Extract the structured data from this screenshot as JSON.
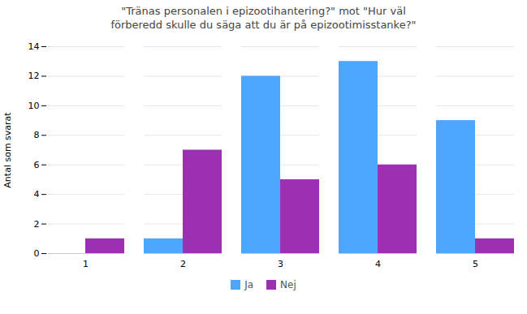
{
  "chart_data": {
    "type": "bar",
    "title": "\"Tränas personalen i epizootihantering?\" mot \"Hur väl\nförberedd skulle du säga att du är på epizootimisstanke?\"",
    "ylabel": "Antal som svarat",
    "categories": [
      1,
      2,
      3,
      4,
      5
    ],
    "series": [
      {
        "name": "Ja",
        "color": "#4da6ff",
        "values": [
          0,
          1,
          12,
          13,
          9
        ]
      },
      {
        "name": "Nej",
        "color": "#9b30b0",
        "values": [
          1,
          7,
          5,
          6,
          1
        ]
      }
    ],
    "ylim": [
      0,
      14
    ],
    "yticks": [
      0,
      2,
      4,
      6,
      8,
      10,
      12,
      14
    ],
    "grid": true,
    "legend": "bottom"
  }
}
